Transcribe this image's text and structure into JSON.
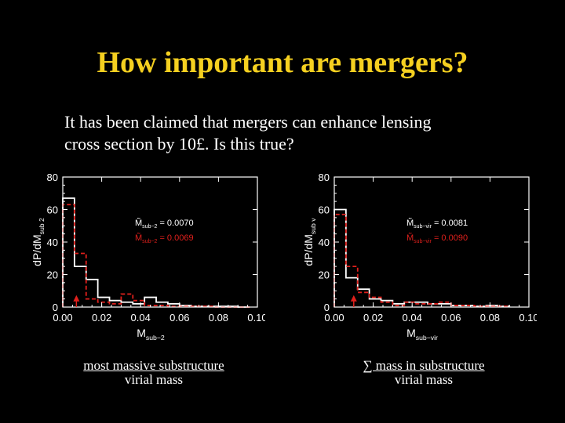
{
  "slide": {
    "title": "How important are mergers?",
    "body_line1": "It has been claimed that mergers can enhance lensing",
    "body_line2": "cross section by 10£.  Is this true?"
  },
  "captions": {
    "left_line1": "most massive substructure",
    "left_line2": "virial mass",
    "right_line1": "∑ mass in substructure",
    "right_line2": "virial mass"
  },
  "colors": {
    "title": "#f5d020",
    "series_white": "#ffffff",
    "series_red": "#e0201c"
  },
  "chart_data": [
    {
      "type": "histogram",
      "xlabel": "M",
      "xlabel_sub": "sub−2",
      "ylabel": "dP/dM",
      "ylabel_sub": "sub 2",
      "xlim": [
        0,
        0.1
      ],
      "ylim": [
        0,
        80
      ],
      "xticks": [
        "0.00",
        "0.02",
        "0.04",
        "0.06",
        "0.08",
        "0.10"
      ],
      "yticks": [
        "0",
        "20",
        "40",
        "60",
        "80"
      ],
      "bin_edges": [
        0,
        0.006,
        0.012,
        0.018,
        0.024,
        0.03,
        0.036,
        0.042,
        0.048,
        0.054,
        0.06,
        0.066,
        0.072,
        0.078,
        0.084,
        0.09,
        0.096
      ],
      "series": [
        {
          "color": "#ffffff",
          "dash": false,
          "values": [
            67,
            25,
            17,
            6,
            4,
            3,
            2,
            6,
            3,
            2,
            1,
            0.5,
            0.5,
            0.5,
            0.5,
            0
          ]
        },
        {
          "color": "#e0201c",
          "dash": true,
          "values": [
            63,
            33,
            5,
            3,
            2,
            8,
            4,
            1,
            1,
            0.5,
            0.5,
            0.5,
            0.5,
            0,
            0,
            0
          ]
        }
      ],
      "annotations": [
        {
          "symbol": "M̃",
          "sub": "sub−2",
          "eq": "= 0.0070",
          "color": "#ffffff"
        },
        {
          "symbol": "M̃",
          "sub": "sub−2",
          "eq": "= 0.0069",
          "color": "#e0201c"
        }
      ],
      "marker": {
        "x": 0.007,
        "y": 3
      }
    },
    {
      "type": "histogram",
      "xlabel": "M",
      "xlabel_sub": "sub−vir",
      "ylabel": "dP/dM",
      "ylabel_sub": "sub v",
      "xlim": [
        0,
        0.1
      ],
      "ylim": [
        0,
        80
      ],
      "xticks": [
        "0.00",
        "0.02",
        "0.04",
        "0.06",
        "0.08",
        "0.10"
      ],
      "yticks": [
        "0",
        "20",
        "40",
        "60",
        "80"
      ],
      "bin_edges": [
        0,
        0.006,
        0.012,
        0.018,
        0.024,
        0.03,
        0.036,
        0.042,
        0.048,
        0.054,
        0.06,
        0.066,
        0.072,
        0.078,
        0.084,
        0.09
      ],
      "series": [
        {
          "color": "#ffffff",
          "dash": false,
          "values": [
            60,
            18,
            11,
            5,
            4,
            2,
            3,
            3,
            2,
            2,
            1,
            1,
            0.5,
            1,
            0.5
          ]
        },
        {
          "color": "#e0201c",
          "dash": true,
          "values": [
            57,
            25,
            9,
            6,
            3,
            1,
            3,
            2,
            2,
            3,
            1,
            1,
            0.5,
            0.5,
            0.5
          ]
        }
      ],
      "annotations": [
        {
          "symbol": "M̃",
          "sub": "sub−vir",
          "eq": "= 0.0081",
          "color": "#ffffff"
        },
        {
          "symbol": "M̃",
          "sub": "sub−vir",
          "eq": "= 0.0090",
          "color": "#e0201c"
        }
      ],
      "marker": {
        "x": 0.01,
        "y": 3
      }
    }
  ]
}
